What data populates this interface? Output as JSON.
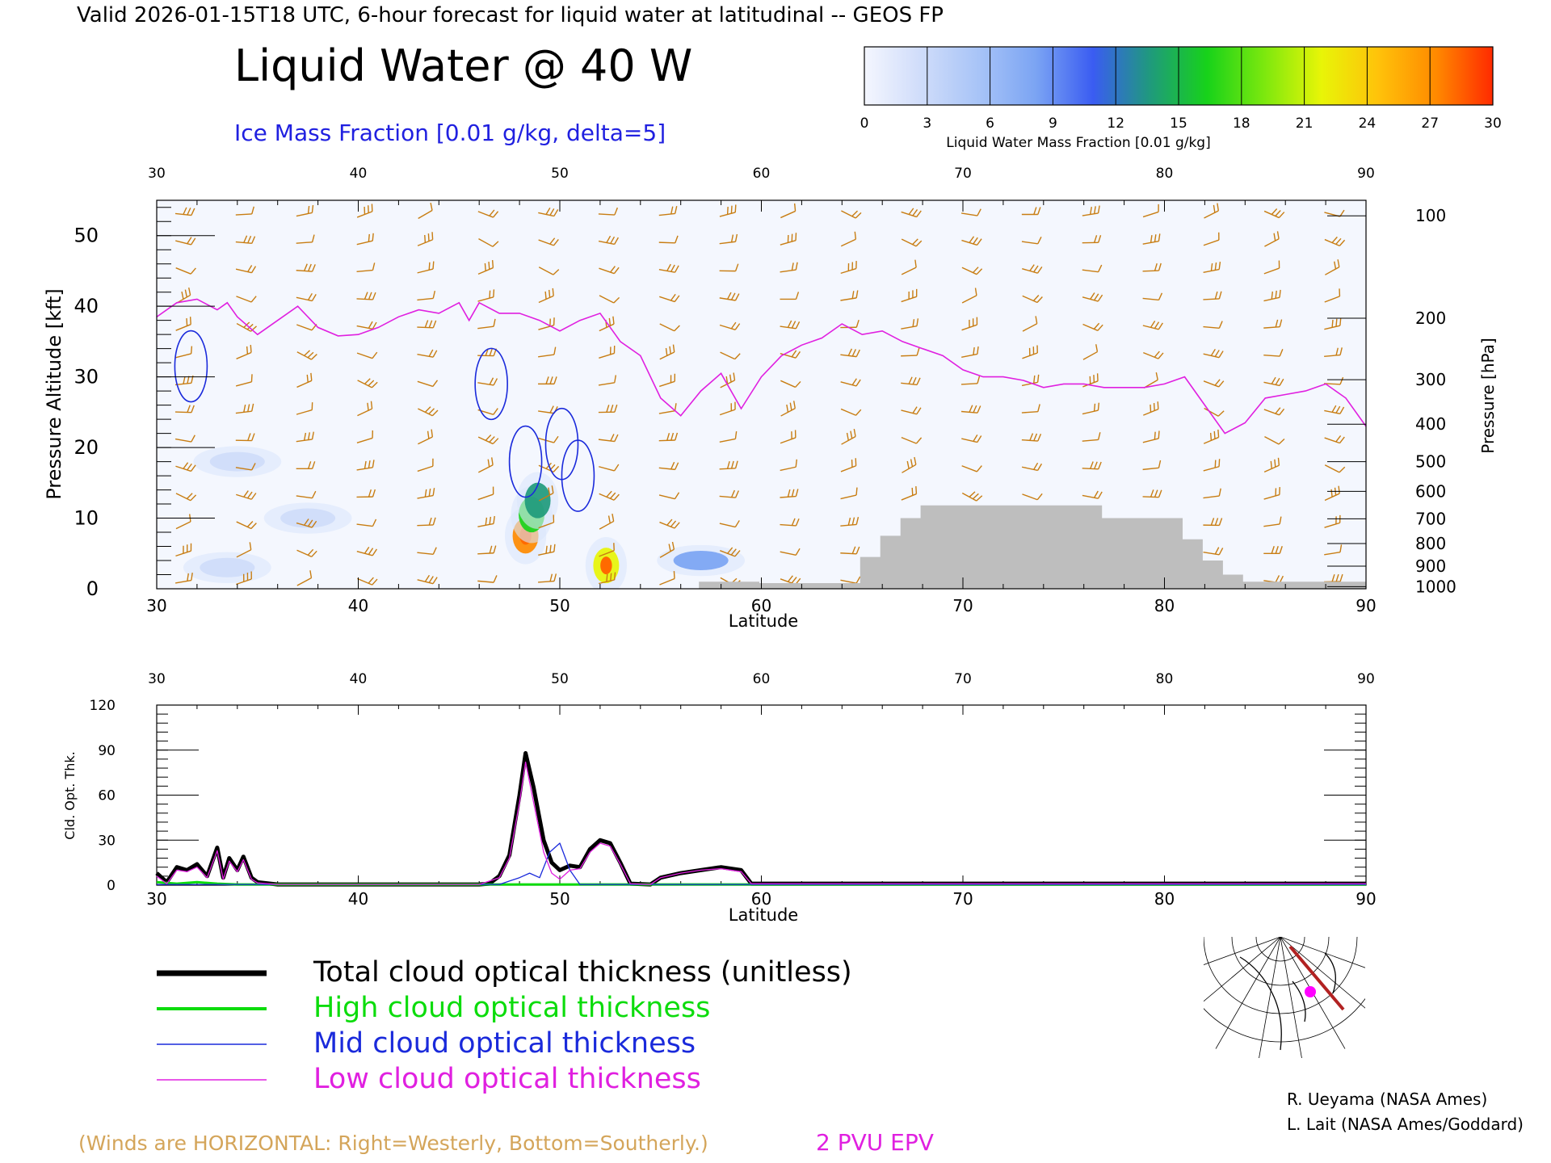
{
  "header": {
    "valid_line": "Valid 2026-01-15T18 UTC, 6-hour forecast for liquid water at latitudinal -- GEOS FP",
    "title": "Liquid Water @ 40 W",
    "subtitle": "Ice Mass Fraction [0.01 g/kg, delta=5]"
  },
  "colorbar": {
    "label": "Liquid Water Mass Fraction [0.01 g/kg]",
    "ticks": [
      "0",
      "3",
      "6",
      "9",
      "12",
      "15",
      "18",
      "21",
      "24",
      "27",
      "30"
    ],
    "colors": [
      "#f4f6fe",
      "#cfdcfa",
      "#a8c4f7",
      "#7ba4f3",
      "#3a5cf2",
      "#1f9a7c",
      "#17d21a",
      "#7ce80e",
      "#e8f507",
      "#ffc20a",
      "#ff8a00",
      "#ff2a00"
    ]
  },
  "colors": {
    "wind_barbs": "#c87d12",
    "epv_line": "#e020e0",
    "ice_contour": "#1a2adb",
    "terrain": "#bebebe",
    "total_line": "#000000",
    "high_line": "#0cdc0c",
    "mid_line": "#1a2adb",
    "low_line": "#e020e0"
  },
  "chart_data": [
    {
      "type": "heatmap",
      "name": "Liquid Water @ 40 W",
      "xlabel": "Latitude",
      "ylabel": "Pressure Altitude [kft]",
      "y2label": "Pressure [hPa]",
      "xlim": [
        30,
        90
      ],
      "ylim": [
        0,
        55
      ],
      "xticks": [
        "30",
        "40",
        "50",
        "60",
        "70",
        "80",
        "90"
      ],
      "yticks": [
        "0",
        "10",
        "20",
        "30",
        "40",
        "50"
      ],
      "pressure_ticks": [
        {
          "label": "100",
          "kft": 52.8
        },
        {
          "label": "200",
          "kft": 38.3
        },
        {
          "label": "300",
          "kft": 29.6
        },
        {
          "label": "400",
          "kft": 23.3
        },
        {
          "label": "500",
          "kft": 18.0
        },
        {
          "label": "600",
          "kft": 13.8
        },
        {
          "label": "700",
          "kft": 9.9
        },
        {
          "label": "800",
          "kft": 6.4
        },
        {
          "label": "900",
          "kft": 3.2
        },
        {
          "label": "1000",
          "kft": 0.3
        }
      ],
      "epv_2pvu_kft": [
        [
          30,
          38.5
        ],
        [
          31,
          40.5
        ],
        [
          32,
          41
        ],
        [
          33,
          39.5
        ],
        [
          33.5,
          40.5
        ],
        [
          34,
          38.5
        ],
        [
          35,
          36
        ],
        [
          36,
          38
        ],
        [
          37,
          40
        ],
        [
          38,
          37
        ],
        [
          39,
          35.8
        ],
        [
          40,
          36
        ],
        [
          41,
          37
        ],
        [
          42,
          38.5
        ],
        [
          43,
          39.5
        ],
        [
          44,
          39
        ],
        [
          45,
          40.5
        ],
        [
          45.5,
          38
        ],
        [
          46,
          40.5
        ],
        [
          47,
          39
        ],
        [
          48,
          39
        ],
        [
          49,
          38
        ],
        [
          50,
          36.5
        ],
        [
          51,
          38
        ],
        [
          52,
          39
        ],
        [
          53,
          35
        ],
        [
          54,
          33
        ],
        [
          55,
          27
        ],
        [
          56,
          24.5
        ],
        [
          57,
          28
        ],
        [
          58,
          30.5
        ],
        [
          59,
          25.5
        ],
        [
          60,
          30
        ],
        [
          61,
          33
        ],
        [
          62,
          34.5
        ],
        [
          63,
          35.5
        ],
        [
          64,
          37.5
        ],
        [
          65,
          36
        ],
        [
          66,
          36.5
        ],
        [
          67,
          35
        ],
        [
          68,
          34
        ],
        [
          69,
          33
        ],
        [
          70,
          31
        ],
        [
          71,
          30
        ],
        [
          72,
          30
        ],
        [
          73,
          29.5
        ],
        [
          74,
          28.5
        ],
        [
          75,
          29
        ],
        [
          76,
          29
        ],
        [
          77,
          28.5
        ],
        [
          78,
          28.5
        ],
        [
          79,
          28.5
        ],
        [
          80,
          29
        ],
        [
          81,
          30
        ],
        [
          82,
          26
        ],
        [
          83,
          22
        ],
        [
          84,
          23.5
        ],
        [
          85,
          27
        ],
        [
          86,
          27.5
        ],
        [
          87,
          28
        ],
        [
          88,
          29
        ],
        [
          89,
          27
        ],
        [
          90,
          23
        ]
      ],
      "terrain_kft": [
        [
          56.9,
          1
        ],
        [
          59.9,
          1
        ],
        [
          59.9,
          0.8
        ],
        [
          64.9,
          0.8
        ],
        [
          64.9,
          4.5
        ],
        [
          65.9,
          4.5
        ],
        [
          65.9,
          7.5
        ],
        [
          66.9,
          7.5
        ],
        [
          66.9,
          10
        ],
        [
          67.9,
          10
        ],
        [
          67.9,
          11.8
        ],
        [
          76.9,
          11.8
        ],
        [
          76.9,
          10
        ],
        [
          80.9,
          10
        ],
        [
          80.9,
          7
        ],
        [
          81.9,
          7
        ],
        [
          81.9,
          4
        ],
        [
          82.9,
          4
        ],
        [
          82.9,
          2
        ],
        [
          83.9,
          2
        ],
        [
          83.9,
          1
        ],
        [
          90,
          1
        ]
      ],
      "liquid_water_blobs": [
        {
          "lat": 48.3,
          "kft": 7.5,
          "value": 28
        },
        {
          "lat": 48.6,
          "kft": 10.5,
          "value": 16
        },
        {
          "lat": 48.9,
          "kft": 12.5,
          "value": 14
        },
        {
          "lat": 52.3,
          "kft": 3.3,
          "value": 22
        },
        {
          "lat": 57.0,
          "kft": 4.0,
          "value": 7
        },
        {
          "lat": 37.5,
          "kft": 10.0,
          "value": 3
        },
        {
          "lat": 33.5,
          "kft": 3.0,
          "value": 4
        },
        {
          "lat": 34.0,
          "kft": 18.0,
          "value": 2
        }
      ],
      "ice_contour_5_centers": [
        {
          "lat": 31.7,
          "kft": 31.5
        },
        {
          "lat": 46.6,
          "kft": 29.0
        },
        {
          "lat": 48.3,
          "kft": 18.0
        },
        {
          "lat": 50.1,
          "kft": 20.5
        },
        {
          "lat": 50.9,
          "kft": 16.0
        }
      ]
    },
    {
      "type": "line",
      "name": "Cloud optical thickness",
      "xlabel": "Latitude",
      "ylabel": "Cld. Opt. Thk.",
      "xlim": [
        30,
        90
      ],
      "ylim": [
        0,
        120
      ],
      "xticks": [
        "30",
        "40",
        "50",
        "60",
        "70",
        "80",
        "90"
      ],
      "yticks": [
        "0",
        "30",
        "60",
        "90",
        "120"
      ],
      "series": [
        {
          "name": "Total cloud optical thickness (unitless)",
          "values": [
            [
              30,
              8
            ],
            [
              30.5,
              2
            ],
            [
              31,
              12
            ],
            [
              31.5,
              10
            ],
            [
              32,
              14
            ],
            [
              32.5,
              6
            ],
            [
              33,
              25
            ],
            [
              33.3,
              5
            ],
            [
              33.6,
              18
            ],
            [
              34,
              10
            ],
            [
              34.3,
              19
            ],
            [
              34.7,
              5
            ],
            [
              35,
              2
            ],
            [
              36,
              0.5
            ],
            [
              40,
              0.5
            ],
            [
              46,
              0.5
            ],
            [
              46.5,
              1
            ],
            [
              47,
              6
            ],
            [
              47.5,
              20
            ],
            [
              48,
              60
            ],
            [
              48.3,
              88
            ],
            [
              48.7,
              65
            ],
            [
              49.2,
              30
            ],
            [
              49.6,
              15
            ],
            [
              50,
              10
            ],
            [
              50.5,
              13
            ],
            [
              51,
              12
            ],
            [
              51.5,
              24
            ],
            [
              52,
              30
            ],
            [
              52.5,
              28
            ],
            [
              53,
              15
            ],
            [
              53.5,
              1
            ],
            [
              54.5,
              0.5
            ],
            [
              55,
              5
            ],
            [
              56,
              8
            ],
            [
              57,
              10
            ],
            [
              58,
              12
            ],
            [
              59,
              10
            ],
            [
              59.5,
              1
            ],
            [
              90,
              1
            ]
          ]
        },
        {
          "name": "High cloud optical thickness",
          "values": [
            [
              30,
              2
            ],
            [
              31,
              1
            ],
            [
              32,
              2
            ],
            [
              33,
              1
            ],
            [
              34,
              0.5
            ],
            [
              90,
              0.5
            ]
          ]
        },
        {
          "name": "Mid cloud optical thickness",
          "values": [
            [
              30,
              0.5
            ],
            [
              47,
              0.5
            ],
            [
              48,
              5
            ],
            [
              48.5,
              8
            ],
            [
              49,
              5
            ],
            [
              49.5,
              22
            ],
            [
              50,
              28
            ],
            [
              50.5,
              10
            ],
            [
              51,
              0.5
            ],
            [
              90,
              0.5
            ]
          ]
        },
        {
          "name": "Low cloud optical thickness",
          "values": [
            [
              30,
              6
            ],
            [
              30.5,
              1
            ],
            [
              31,
              10
            ],
            [
              31.5,
              9
            ],
            [
              32,
              12
            ],
            [
              32.5,
              5
            ],
            [
              33,
              23
            ],
            [
              33.3,
              4
            ],
            [
              33.6,
              16
            ],
            [
              34,
              9
            ],
            [
              34.3,
              17
            ],
            [
              34.7,
              4
            ],
            [
              35,
              1.5
            ],
            [
              36,
              0.5
            ],
            [
              46,
              0.5
            ],
            [
              47,
              5
            ],
            [
              47.5,
              18
            ],
            [
              48,
              55
            ],
            [
              48.3,
              82
            ],
            [
              48.7,
              55
            ],
            [
              49.2,
              22
            ],
            [
              49.6,
              8
            ],
            [
              50,
              4
            ],
            [
              50.5,
              10
            ],
            [
              51,
              11
            ],
            [
              51.5,
              22
            ],
            [
              52,
              28
            ],
            [
              52.5,
              26
            ],
            [
              53,
              14
            ],
            [
              53.5,
              1
            ],
            [
              54.5,
              0.5
            ],
            [
              55,
              5
            ],
            [
              56,
              8
            ],
            [
              57,
              10
            ],
            [
              58,
              11
            ],
            [
              59,
              9
            ],
            [
              59.5,
              1
            ],
            [
              90,
              1
            ]
          ]
        }
      ]
    }
  ],
  "legend": [
    {
      "label": "Total cloud optical thickness (unitless)",
      "color": "#000000"
    },
    {
      "label": "High cloud optical thickness",
      "color": "#0cdc0c"
    },
    {
      "label": "Mid cloud optical thickness",
      "color": "#1a2adb"
    },
    {
      "label": "Low cloud optical thickness",
      "color": "#e020e0"
    }
  ],
  "footer": {
    "winds_note": "(Winds are HORIZONTAL: Right=Westerly, Bottom=Southerly.)",
    "epv_label": "2 PVU EPV",
    "credit_1": "R. Ueyama (NASA Ames)",
    "credit_2": "L. Lait (NASA Ames/Goddard)"
  }
}
